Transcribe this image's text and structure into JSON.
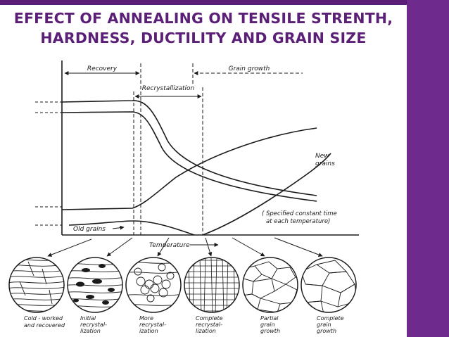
{
  "slide": {
    "title_line1": "EFFECT OF ANNEALING ON TENSILE STRENTH,",
    "title_line2": "HARDNESS, DUCTILITY AND GRAIN SIZE",
    "colors": {
      "title": "#5b1f77",
      "panel": "#6e2a8c",
      "ink": "#1a1a1a"
    }
  },
  "diagram": {
    "stage_recovery": "Recovery",
    "stage_recrystallization": "Recrystallization",
    "stage_grain_growth": "Grain growth",
    "label_new_grains_1": "New",
    "label_new_grains_2": "grains",
    "label_old_grains": "Old grains",
    "note_line1": "( Specified constant time",
    "note_line2": "at each temperature)",
    "axis_label": "Temperature",
    "micrographs": [
      {
        "line1": "Cold - worked",
        "line2": "and recovered"
      },
      {
        "line1": "Initial",
        "line2": "recrystal-",
        "line3": "lization"
      },
      {
        "line1": "More",
        "line2": "recrystal-",
        "line3": "ization"
      },
      {
        "line1": "Complete",
        "line2": "recrystal-",
        "line3": "lization"
      },
      {
        "line1": "Partial",
        "line2": "grain",
        "line3": "growth"
      },
      {
        "line1": "Complete",
        "line2": "grain",
        "line3": "growth"
      }
    ]
  }
}
